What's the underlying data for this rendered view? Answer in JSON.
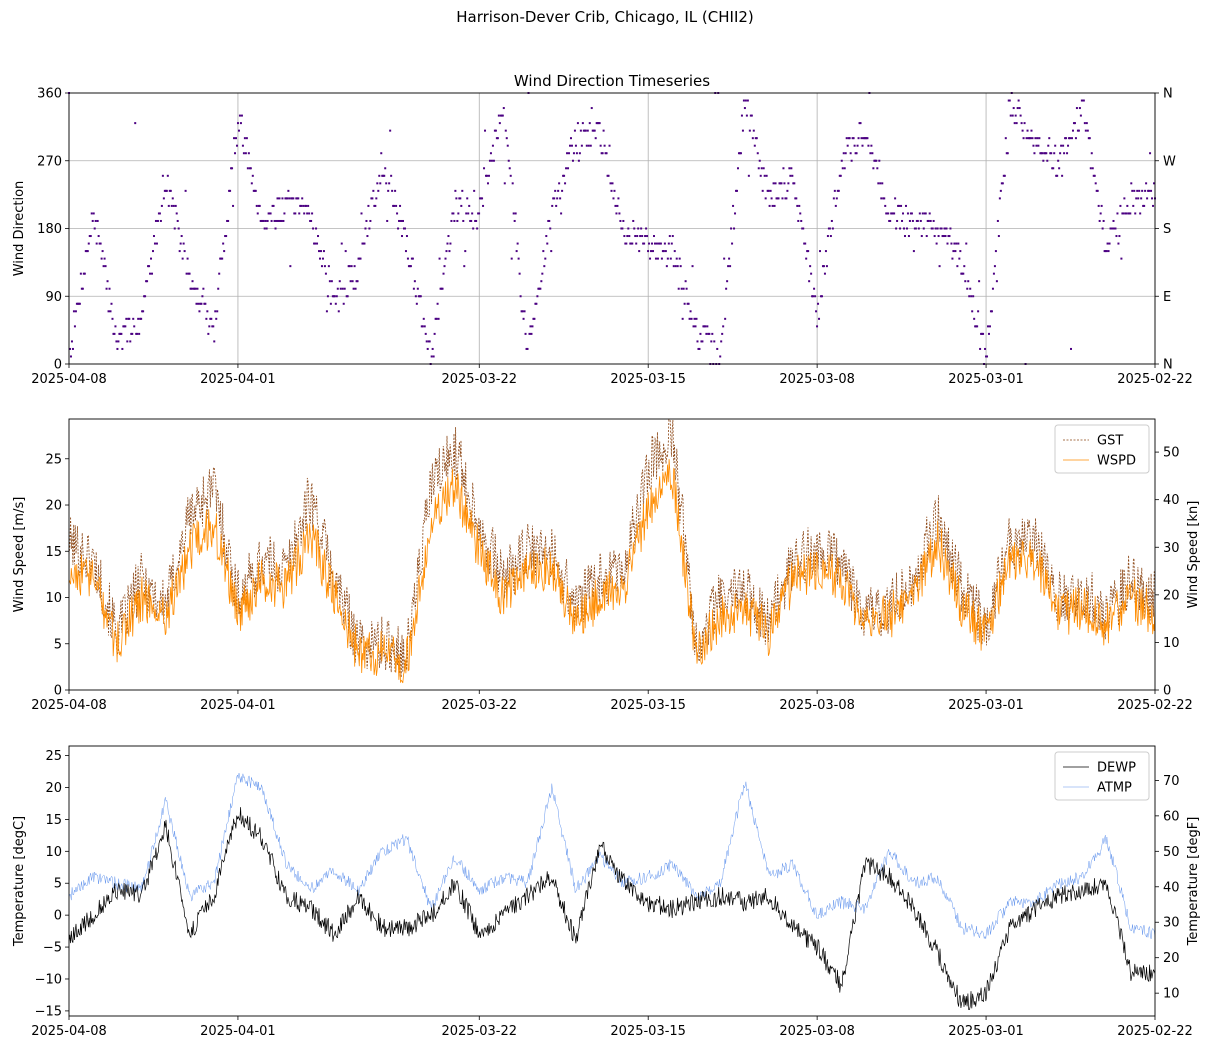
{
  "figure": {
    "suptitle": "Harrison-Dever Crib, Chicago, IL (CHII2)"
  },
  "colors": {
    "wdir": "#4b0082",
    "gst": "#8b4513",
    "wspd": "#ff8c00",
    "dewp": "#000000",
    "atmp": "#6495ed",
    "grid": "#b0b0b0"
  },
  "chart_data": [
    {
      "type": "scatter",
      "title": "Wind Direction Timeseries",
      "xlabel": "",
      "ylabel": "Wind Direction",
      "x_tick_labels": [
        "2025-04-08",
        "2025-04-01",
        "2025-03-22",
        "2025-03-15",
        "2025-03-08",
        "2025-03-01",
        "2025-02-22"
      ],
      "x_range": [
        "2025-04-08",
        "2025-02-22"
      ],
      "ylim": [
        0,
        360
      ],
      "y_ticks": [
        0,
        90,
        180,
        270,
        360
      ],
      "y2_tick_labels": [
        "N",
        "E",
        "S",
        "W",
        "N"
      ],
      "grid": true,
      "series": [
        {
          "x": [
            "2025-04-08",
            "2025-04-07",
            "2025-04-06",
            "2025-04-05",
            "2025-04-04",
            "2025-04-03",
            "2025-04-02",
            "2025-04-01",
            "2025-03-31",
            "2025-03-30",
            "2025-03-29",
            "2025-03-28",
            "2025-03-27",
            "2025-03-26",
            "2025-03-25",
            "2025-03-24",
            "2025-03-23",
            "2025-03-22",
            "2025-03-21",
            "2025-03-20",
            "2025-03-19",
            "2025-03-18",
            "2025-03-17",
            "2025-03-16",
            "2025-03-15",
            "2025-03-14",
            "2025-03-13",
            "2025-03-12",
            "2025-03-11",
            "2025-03-10",
            "2025-03-09",
            "2025-03-08",
            "2025-03-07",
            "2025-03-06",
            "2025-03-05",
            "2025-03-04",
            "2025-03-03",
            "2025-03-02",
            "2025-03-01",
            "2025-02-28",
            "2025-02-27",
            "2025-02-26",
            "2025-02-25",
            "2025-02-24",
            "2025-02-23",
            "2025-02-22"
          ],
          "values": [
            10,
            200,
            30,
            60,
            250,
            110,
            40,
            330,
            190,
            210,
            200,
            80,
            130,
            270,
            160,
            10,
            210,
            200,
            350,
            10,
            200,
            300,
            310,
            170,
            160,
            150,
            40,
            10,
            350,
            220,
            250,
            60,
            270,
            310,
            200,
            190,
            180,
            130,
            10,
            350,
            290,
            270,
            340,
            150,
            220,
            220
          ]
        }
      ]
    },
    {
      "type": "line",
      "title": "",
      "xlabel": "",
      "ylabel": "Wind Speed [m/s]",
      "y2label": "Wind Speed [kn]",
      "x_tick_labels": [
        "2025-04-08",
        "2025-04-01",
        "2025-03-22",
        "2025-03-15",
        "2025-03-08",
        "2025-03-01",
        "2025-02-22"
      ],
      "x_range": [
        "2025-04-08",
        "2025-02-22"
      ],
      "ylim": [
        0,
        29.3
      ],
      "y_ticks": [
        0,
        5,
        10,
        15,
        20,
        25
      ],
      "y2_ticks": [
        0,
        10,
        20,
        30,
        40,
        50
      ],
      "grid": false,
      "legend_position": "top-right",
      "x": [
        "2025-04-08",
        "2025-04-07",
        "2025-04-06",
        "2025-04-05",
        "2025-04-04",
        "2025-04-03",
        "2025-04-02",
        "2025-04-01",
        "2025-03-31",
        "2025-03-30",
        "2025-03-29",
        "2025-03-28",
        "2025-03-27",
        "2025-03-26",
        "2025-03-25",
        "2025-03-24",
        "2025-03-23",
        "2025-03-22",
        "2025-03-21",
        "2025-03-20",
        "2025-03-19",
        "2025-03-18",
        "2025-03-17",
        "2025-03-16",
        "2025-03-15",
        "2025-03-14",
        "2025-03-13",
        "2025-03-12",
        "2025-03-11",
        "2025-03-10",
        "2025-03-09",
        "2025-03-08",
        "2025-03-07",
        "2025-03-06",
        "2025-03-05",
        "2025-03-04",
        "2025-03-03",
        "2025-03-02",
        "2025-03-01",
        "2025-02-28",
        "2025-02-27",
        "2025-02-26",
        "2025-02-25",
        "2025-02-24",
        "2025-02-23",
        "2025-02-22"
      ],
      "series": [
        {
          "name": "GST",
          "values": [
            16,
            14,
            6,
            12,
            9,
            19,
            22,
            10,
            14,
            13,
            21,
            12,
            5,
            5,
            4,
            22,
            26,
            18,
            12,
            15,
            15,
            9,
            12,
            13,
            24,
            28,
            5,
            10,
            11,
            7,
            14,
            15,
            14,
            8,
            9,
            12,
            19,
            11,
            7,
            16,
            16,
            10,
            11,
            8,
            12,
            10
          ]
        },
        {
          "name": "WSPD",
          "values": [
            13,
            12,
            5,
            10,
            8,
            15,
            18,
            8,
            12,
            11,
            17,
            10,
            4,
            4,
            3,
            18,
            22,
            15,
            10,
            13,
            13,
            7,
            10,
            11,
            20,
            23,
            4,
            8,
            9,
            6,
            12,
            13,
            12,
            7,
            8,
            10,
            16,
            9,
            6,
            14,
            14,
            8,
            9,
            7,
            10,
            8
          ]
        }
      ]
    },
    {
      "type": "line",
      "title": "",
      "xlabel": "",
      "ylabel": "Temperature [degC]",
      "y2label": "Temperature [degF]",
      "x_tick_labels": [
        "2025-04-08",
        "2025-04-01",
        "2025-03-22",
        "2025-03-15",
        "2025-03-08",
        "2025-03-01",
        "2025-02-22"
      ],
      "x_range": [
        "2025-04-08",
        "2025-02-22"
      ],
      "ylim": [
        -15.8,
        26.5
      ],
      "y_ticks": [
        -15,
        -10,
        -5,
        0,
        5,
        10,
        15,
        20,
        25
      ],
      "y2_ticks": [
        10,
        20,
        30,
        40,
        50,
        60,
        70
      ],
      "grid": false,
      "legend_position": "top-right",
      "x": [
        "2025-04-08",
        "2025-04-07",
        "2025-04-06",
        "2025-04-05",
        "2025-04-04",
        "2025-04-03",
        "2025-04-02",
        "2025-04-01",
        "2025-03-31",
        "2025-03-30",
        "2025-03-29",
        "2025-03-28",
        "2025-03-27",
        "2025-03-26",
        "2025-03-25",
        "2025-03-24",
        "2025-03-23",
        "2025-03-22",
        "2025-03-21",
        "2025-03-20",
        "2025-03-19",
        "2025-03-18",
        "2025-03-17",
        "2025-03-16",
        "2025-03-15",
        "2025-03-14",
        "2025-03-13",
        "2025-03-12",
        "2025-03-11",
        "2025-03-10",
        "2025-03-09",
        "2025-03-08",
        "2025-03-07",
        "2025-03-06",
        "2025-03-05",
        "2025-03-04",
        "2025-03-03",
        "2025-03-02",
        "2025-03-01",
        "2025-02-28",
        "2025-02-27",
        "2025-02-26",
        "2025-02-25",
        "2025-02-24",
        "2025-02-23",
        "2025-02-22"
      ],
      "series": [
        {
          "name": "DEWP",
          "values": [
            -4,
            0,
            4,
            3,
            14,
            -3,
            3,
            16,
            12,
            3,
            1,
            -3,
            3,
            -2,
            -2,
            0,
            5,
            -3,
            0,
            3,
            6,
            -4,
            11,
            5,
            2,
            1,
            2,
            3,
            2,
            3,
            -2,
            -5,
            -11,
            8,
            6,
            1,
            -6,
            -14,
            -12,
            -2,
            1,
            3,
            4,
            5,
            -9,
            -9
          ]
        },
        {
          "name": "ATMP",
          "values": [
            3,
            6,
            5,
            4,
            18,
            3,
            5,
            22,
            20,
            8,
            4,
            7,
            4,
            10,
            12,
            1,
            9,
            4,
            6,
            5,
            20,
            4,
            9,
            5,
            6,
            8,
            3,
            5,
            21,
            6,
            8,
            0,
            2,
            1,
            10,
            5,
            6,
            -2,
            -3,
            2,
            2,
            5,
            6,
            12,
            -2,
            -3
          ]
        }
      ]
    }
  ]
}
